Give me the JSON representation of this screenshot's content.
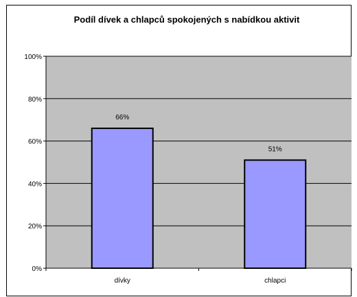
{
  "chart_data": {
    "type": "bar",
    "title": "Podíl dívek a chlapců spokojených s nabídkou aktivit",
    "categories": [
      "dívky",
      "chlapci"
    ],
    "values": [
      66,
      51
    ],
    "data_labels": [
      "66%",
      "51%"
    ],
    "ylim": [
      0,
      100
    ],
    "yticks": [
      0,
      20,
      40,
      60,
      80,
      100
    ],
    "ytick_labels": [
      "0%",
      "20%",
      "40%",
      "60%",
      "80%",
      "100%"
    ],
    "xlabel": "",
    "ylabel": "",
    "grid": true,
    "legend": "none",
    "colors": {
      "bar": "#9999ff",
      "plot_background": "#c0c0c0",
      "gridline": "#000000",
      "axis": "#000000"
    }
  }
}
